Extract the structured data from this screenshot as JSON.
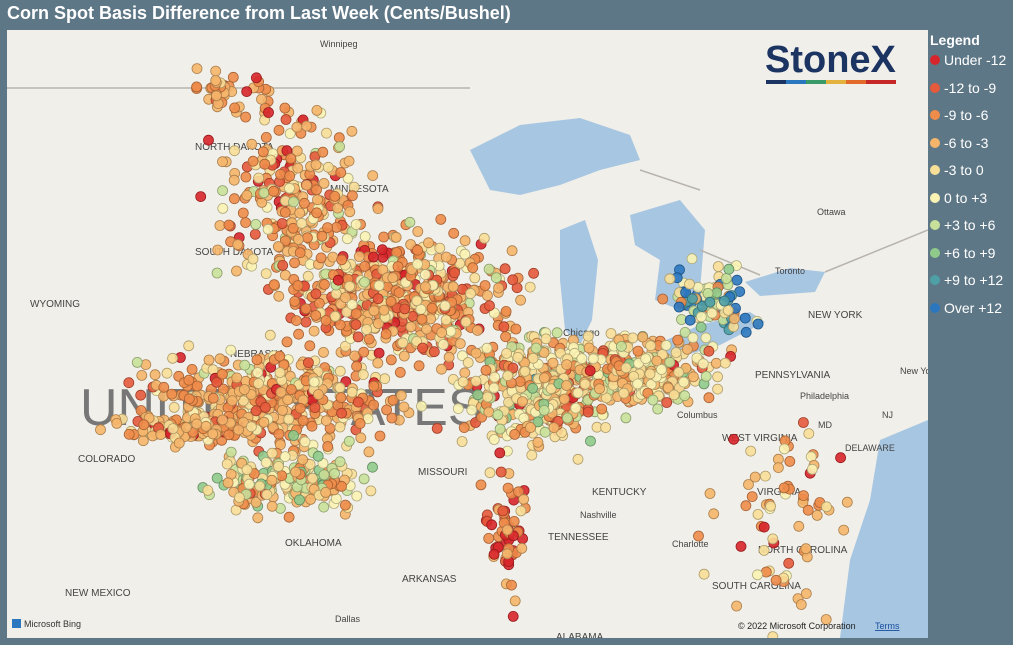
{
  "header": {
    "title": "Corn Spot Basis Difference from Last Week (Cents/Bushel)"
  },
  "logo": "StoneX",
  "legend": {
    "title": "Legend",
    "items": [
      {
        "name": "Under -12",
        "color": "#d7262b"
      },
      {
        "name": "-12 to -9",
        "color": "#e65a3c"
      },
      {
        "name": "-9 to -6",
        "color": "#ee8c4a"
      },
      {
        "name": "-6 to -3",
        "color": "#f5b66c"
      },
      {
        "name": "-3 to 0",
        "color": "#f8df98"
      },
      {
        "name": "0 to +3",
        "color": "#fbf3b4"
      },
      {
        "name": "+3 to +6",
        "color": "#c8e19a"
      },
      {
        "name": "+6 to +9",
        "color": "#8fca8b"
      },
      {
        "name": "+9 to +12",
        "color": "#4e9fa6"
      },
      {
        "name": "Over +12",
        "color": "#2b77bf"
      }
    ]
  },
  "map": {
    "labels": [
      "Winnipeg",
      "NORTH DAKOTA",
      "MINNESOTA",
      "SOUTH DAKOTA",
      "WYOMING",
      "NEBRASKA",
      "UNITED STATES",
      "COLORADO",
      "MISSOURI",
      "OKLAHOMA",
      "NEW MEXICO",
      "ARKANSAS",
      "Dallas",
      "KENTUCKY",
      "Nashville",
      "TENNESSEE",
      "WEST VIRGINIA",
      "VIRGINIA",
      "Charlotte",
      "NORTH CAROLINA",
      "SOUTH CAROLINA",
      "ALABAMA",
      "Chicago",
      "Columbus",
      "PENNSYLVANIA",
      "Philadelphia",
      "NEW YORK",
      "Ottawa",
      "Toronto",
      "MD",
      "DELAWARE",
      "NJ",
      "New York"
    ],
    "attribution": "Microsoft Bing",
    "copyright": "© 2022 Microsoft Corporation",
    "terms": "Terms"
  }
}
